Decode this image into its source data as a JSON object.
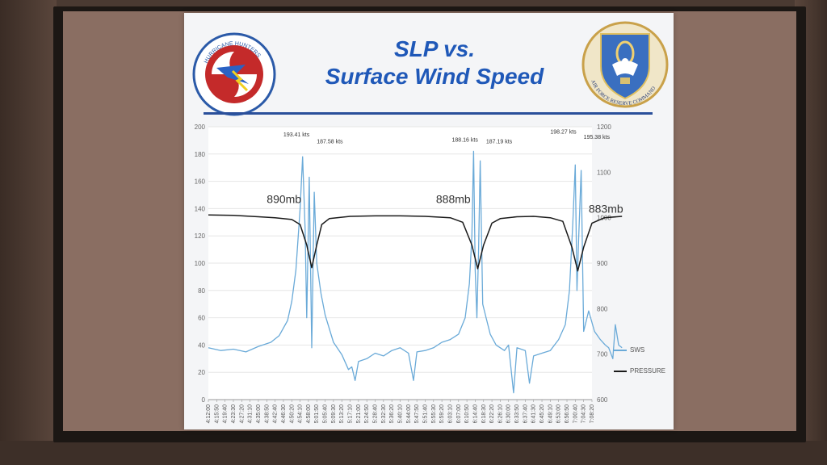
{
  "slide": {
    "title_line1": "SLP vs.",
    "title_line2": "Surface Wind Speed",
    "logo_left_text": "HURRICANE HUNTERS",
    "logo_right_text": "AIR FORCE RESERVE COMMAND"
  },
  "colors": {
    "title": "#1f58b8",
    "sws": "#6aaad8",
    "pressure": "#1a1a1a",
    "grid": "#e6e6e6"
  },
  "chart_data": {
    "type": "line",
    "x_tick_labels": [
      "4:12:00",
      "4:15:50",
      "4:19:40",
      "4:23:30",
      "4:27:20",
      "4:31:10",
      "4:35:00",
      "4:38:50",
      "4:42:40",
      "4:46:30",
      "4:50:20",
      "4:54:10",
      "4:58:00",
      "5:01:50",
      "5:05:40",
      "5:09:30",
      "5:13:20",
      "5:17:10",
      "5:21:00",
      "5:24:50",
      "5:28:40",
      "5:32:30",
      "5:36:20",
      "5:40:10",
      "5:44:00",
      "5:47:50",
      "5:51:40",
      "5:55:30",
      "5:59:20",
      "6:03:10",
      "6:07:00",
      "6:10:50",
      "6:14:40",
      "6:18:30",
      "6:22:20",
      "6:26:10",
      "6:30:00",
      "6:33:50",
      "6:37:40",
      "6:41:30",
      "6:45:20",
      "6:49:10",
      "6:53:00",
      "6:56:50",
      "7:00:40",
      "7:04:30",
      "7:08:20"
    ],
    "y_left": {
      "ticks": [
        0,
        20,
        40,
        60,
        80,
        100,
        120,
        140,
        160,
        180,
        200
      ],
      "lim": [
        0,
        200
      ]
    },
    "y_right": {
      "ticks": [
        600,
        700,
        800,
        900,
        1000,
        1100,
        1200
      ],
      "lim": [
        600,
        1200
      ]
    },
    "grid": true,
    "legend_position": "right",
    "series": [
      {
        "name": "SWS",
        "axis": "left",
        "points": [
          [
            0,
            38
          ],
          [
            1.5,
            36
          ],
          [
            3,
            37
          ],
          [
            4.5,
            35
          ],
          [
            6,
            39
          ],
          [
            7.5,
            42
          ],
          [
            8.5,
            47
          ],
          [
            9.5,
            58
          ],
          [
            10,
            72
          ],
          [
            10.5,
            95
          ],
          [
            11,
            140
          ],
          [
            11.3,
            178
          ],
          [
            11.6,
            125
          ],
          [
            11.8,
            60
          ],
          [
            12.1,
            163
          ],
          [
            12.4,
            38
          ],
          [
            12.7,
            152
          ],
          [
            13,
            100
          ],
          [
            13.5,
            78
          ],
          [
            14,
            62
          ],
          [
            15,
            42
          ],
          [
            16,
            33
          ],
          [
            16.8,
            22
          ],
          [
            17.2,
            24
          ],
          [
            17.6,
            14
          ],
          [
            18,
            28
          ],
          [
            19,
            30
          ],
          [
            20,
            34
          ],
          [
            21,
            32
          ],
          [
            22,
            36
          ],
          [
            23,
            38
          ],
          [
            24,
            34
          ],
          [
            24.6,
            14
          ],
          [
            25,
            35
          ],
          [
            26,
            36
          ],
          [
            27,
            38
          ],
          [
            28,
            42
          ],
          [
            29,
            44
          ],
          [
            30,
            48
          ],
          [
            30.8,
            60
          ],
          [
            31.3,
            85
          ],
          [
            31.6,
            120
          ],
          [
            31.8,
            182
          ],
          [
            32,
            95
          ],
          [
            32.2,
            60
          ],
          [
            32.4,
            110
          ],
          [
            32.6,
            175
          ],
          [
            32.9,
            70
          ],
          [
            33.3,
            60
          ],
          [
            33.8,
            48
          ],
          [
            34.5,
            40
          ],
          [
            35.5,
            36
          ],
          [
            36,
            40
          ],
          [
            36.6,
            5
          ],
          [
            37,
            38
          ],
          [
            38,
            36
          ],
          [
            38.5,
            12
          ],
          [
            39,
            32
          ],
          [
            40,
            34
          ],
          [
            41,
            36
          ],
          [
            42,
            44
          ],
          [
            42.8,
            55
          ],
          [
            43.3,
            80
          ],
          [
            43.7,
            130
          ],
          [
            44,
            172
          ],
          [
            44.2,
            80
          ],
          [
            44.4,
            118
          ],
          [
            44.7,
            168
          ],
          [
            45,
            50
          ],
          [
            45.6,
            65
          ],
          [
            46.3,
            50
          ],
          [
            47,
            44
          ],
          [
            47.6,
            40
          ],
          [
            48,
            38
          ],
          [
            48.5,
            30
          ],
          [
            48.8,
            55
          ],
          [
            49.2,
            40
          ],
          [
            49.6,
            38
          ]
        ]
      },
      {
        "name": "PRESSURE",
        "axis": "right",
        "points": [
          [
            0,
            1006
          ],
          [
            3,
            1005
          ],
          [
            6,
            1002
          ],
          [
            8,
            1000
          ],
          [
            10,
            996
          ],
          [
            11,
            985
          ],
          [
            11.8,
            940
          ],
          [
            12.4,
            890
          ],
          [
            13,
            940
          ],
          [
            13.6,
            985
          ],
          [
            14.5,
            998
          ],
          [
            17,
            1003
          ],
          [
            20,
            1004
          ],
          [
            23,
            1004
          ],
          [
            26,
            1003
          ],
          [
            29,
            1000
          ],
          [
            30.5,
            990
          ],
          [
            31.6,
            940
          ],
          [
            32.3,
            888
          ],
          [
            33,
            940
          ],
          [
            34,
            988
          ],
          [
            35,
            998
          ],
          [
            37,
            1002
          ],
          [
            39,
            1003
          ],
          [
            41,
            1000
          ],
          [
            42.5,
            992
          ],
          [
            43.6,
            935
          ],
          [
            44.3,
            883
          ],
          [
            45,
            935
          ],
          [
            46,
            988
          ],
          [
            47.5,
            1000
          ],
          [
            49.6,
            1003
          ]
        ]
      }
    ],
    "annotations": [
      {
        "text": "890mb",
        "x": 7.0,
        "y": 144
      },
      {
        "text": "888mb",
        "x": 27.3,
        "y": 144
      },
      {
        "text": "883mb",
        "x": 45.6,
        "y": 137
      },
      {
        "text": "193.41 kts",
        "x": 9.0,
        "y": 193
      },
      {
        "text": "187.58 kts",
        "x": 13.0,
        "y": 188
      },
      {
        "text": "188.16 kts",
        "x": 29.2,
        "y": 189
      },
      {
        "text": "187.19 kts",
        "x": 33.3,
        "y": 188
      },
      {
        "text": "198.27 kts",
        "x": 41.0,
        "y": 195
      },
      {
        "text": "195.38 kts",
        "x": 45.0,
        "y": 191
      }
    ]
  }
}
